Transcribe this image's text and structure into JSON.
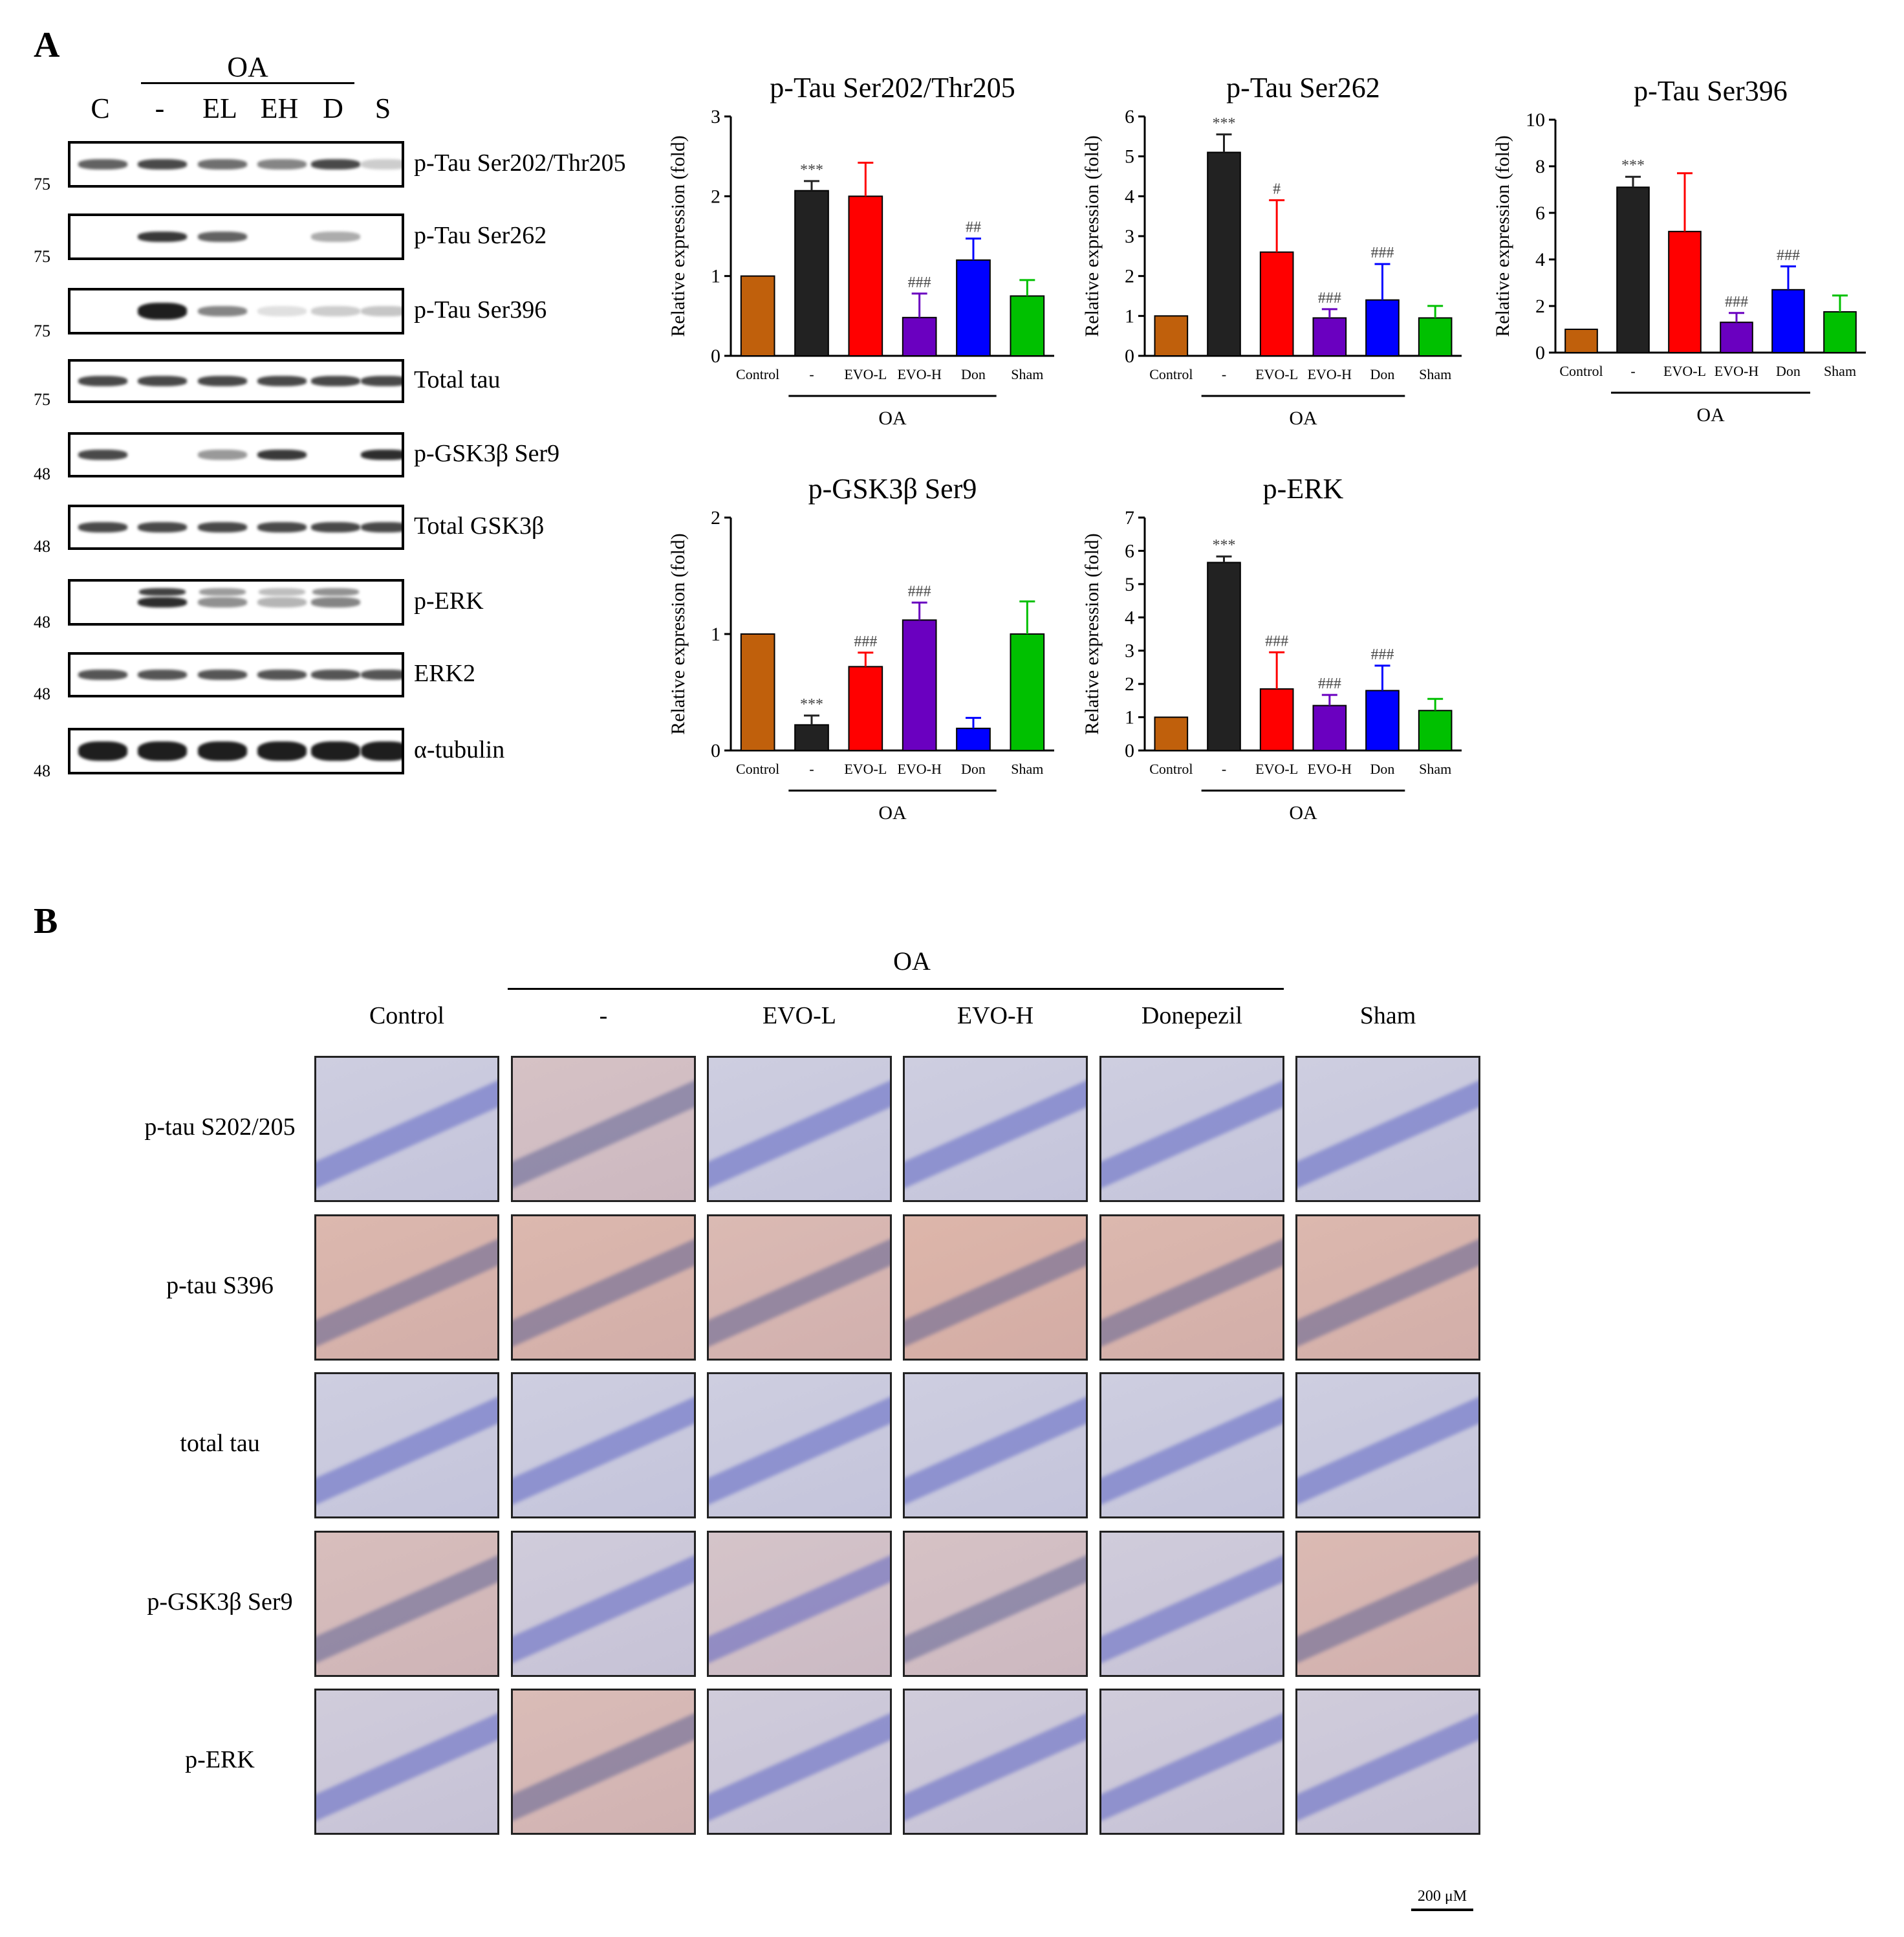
{
  "panels": {
    "a": "A",
    "b": "B"
  },
  "western_blot": {
    "treatment_label": "OA",
    "lanes": [
      "C",
      "-",
      "EL",
      "EH",
      "D",
      "S"
    ],
    "blots": [
      {
        "label": "p-Tau Ser202/Thr205",
        "mw": "75",
        "intensity": [
          0.75,
          0.85,
          0.7,
          0.6,
          0.85,
          0.2
        ]
      },
      {
        "label": "p-Tau Ser262",
        "mw": "75",
        "intensity": [
          0.0,
          0.9,
          0.75,
          0.0,
          0.4,
          0.0
        ]
      },
      {
        "label": "p-Tau Ser396",
        "mw": "75",
        "intensity": [
          0.0,
          1.0,
          0.6,
          0.05,
          0.2,
          0.25
        ]
      },
      {
        "label": "Total tau",
        "mw": "75",
        "intensity": [
          0.85,
          0.85,
          0.85,
          0.85,
          0.85,
          0.85
        ]
      },
      {
        "label": "p-GSK3β Ser9",
        "mw": "48",
        "intensity": [
          0.85,
          0.0,
          0.5,
          0.9,
          0.0,
          0.95
        ]
      },
      {
        "label": "Total GSK3β",
        "mw": "48",
        "intensity": [
          0.85,
          0.85,
          0.85,
          0.85,
          0.85,
          0.85
        ]
      },
      {
        "label": "p-ERK",
        "mw": "48",
        "intensity": [
          0.0,
          0.95,
          0.55,
          0.35,
          0.6,
          0.0
        ]
      },
      {
        "label": "ERK2",
        "mw": "48",
        "intensity": [
          0.8,
          0.8,
          0.8,
          0.8,
          0.8,
          0.8
        ]
      },
      {
        "label": "α-tubulin",
        "mw": "48",
        "intensity": [
          1.0,
          1.0,
          1.0,
          1.0,
          1.0,
          1.0
        ]
      }
    ]
  },
  "chart_data": [
    {
      "type": "bar",
      "title": "p-Tau Ser202/Thr205",
      "ylabel": "Relative expression (fold)",
      "group_label": "OA",
      "categories": [
        "Control",
        "-",
        "EVO-L",
        "EVO-H",
        "Don",
        "Sham"
      ],
      "values": [
        1.0,
        2.07,
        2.0,
        0.48,
        1.2,
        0.75
      ],
      "errors": [
        0,
        0.12,
        0.42,
        0.3,
        0.27,
        0.2
      ],
      "annotations": [
        "",
        "***",
        "",
        "###",
        "##",
        ""
      ],
      "ylim": [
        0,
        3
      ],
      "yticks": [
        0,
        1,
        2,
        3
      ]
    },
    {
      "type": "bar",
      "title": "p-Tau Ser262",
      "ylabel": "Relative expression (fold)",
      "group_label": "OA",
      "categories": [
        "Control",
        "-",
        "EVO-L",
        "EVO-H",
        "Don",
        "Sham"
      ],
      "values": [
        1.0,
        5.1,
        2.6,
        0.95,
        1.4,
        0.95
      ],
      "errors": [
        0,
        0.45,
        1.3,
        0.22,
        0.9,
        0.3
      ],
      "annotations": [
        "",
        "***",
        "#",
        "###",
        "###",
        ""
      ],
      "ylim": [
        0,
        6
      ],
      "yticks": [
        0,
        1,
        2,
        3,
        4,
        5,
        6
      ]
    },
    {
      "type": "bar",
      "title": "p-Tau Ser396",
      "ylabel": "Relative expression (fold)",
      "group_label": "OA",
      "categories": [
        "Control",
        "-",
        "EVO-L",
        "EVO-H",
        "Don",
        "Sham"
      ],
      "values": [
        1.0,
        7.1,
        5.2,
        1.3,
        2.7,
        1.75
      ],
      "errors": [
        0,
        0.45,
        2.5,
        0.4,
        1.0,
        0.7
      ],
      "annotations": [
        "",
        "***",
        "",
        "###",
        "###",
        ""
      ],
      "ylim": [
        0,
        10
      ],
      "yticks": [
        0,
        2,
        4,
        6,
        8,
        10
      ]
    },
    {
      "type": "bar",
      "title": "p-GSK3β Ser9",
      "ylabel": "Relative expression (fold)",
      "group_label": "OA",
      "categories": [
        "Control",
        "-",
        "EVO-L",
        "EVO-H",
        "Don",
        "Sham"
      ],
      "values": [
        1.0,
        0.22,
        0.72,
        1.12,
        0.19,
        1.0
      ],
      "errors": [
        0,
        0.08,
        0.12,
        0.15,
        0.09,
        0.28
      ],
      "annotations": [
        "",
        "***",
        "###",
        "###",
        "",
        ""
      ],
      "ylim": [
        0,
        2
      ],
      "yticks": [
        0,
        1,
        2
      ]
    },
    {
      "type": "bar",
      "title": "p-ERK",
      "ylabel": "Relative expression (fold)",
      "group_label": "OA",
      "categories": [
        "Control",
        "-",
        "EVO-L",
        "EVO-H",
        "Don",
        "Sham"
      ],
      "values": [
        1.0,
        5.65,
        1.85,
        1.35,
        1.8,
        1.2
      ],
      "errors": [
        0,
        0.18,
        1.1,
        0.32,
        0.75,
        0.35
      ],
      "annotations": [
        "",
        "***",
        "###",
        "###",
        "###",
        ""
      ],
      "ylim": [
        0,
        7
      ],
      "yticks": [
        0,
        1,
        2,
        3,
        4,
        5,
        6,
        7
      ]
    }
  ],
  "bar_colors": [
    "#c0600c",
    "#222222",
    "#ff0000",
    "#6a00c0",
    "#0000ff",
    "#00c000"
  ],
  "ihc": {
    "treatment_label": "OA",
    "columns": [
      "Control",
      "-",
      "EVO-L",
      "EVO-H",
      "Donepezil",
      "Sham"
    ],
    "rows": [
      "p-tau S202/205",
      "p-tau S396",
      "total tau",
      "p-GSK3β Ser9",
      "p-ERK"
    ],
    "scale_bar": "200 μM",
    "stain_level": [
      [
        0.05,
        0.35,
        0.05,
        0.05,
        0.05,
        0.05
      ],
      [
        0.6,
        0.6,
        0.55,
        0.65,
        0.6,
        0.6
      ],
      [
        0.05,
        0.05,
        0.05,
        0.05,
        0.05,
        0.05
      ],
      [
        0.45,
        0.1,
        0.3,
        0.35,
        0.1,
        0.55
      ],
      [
        0.1,
        0.5,
        0.1,
        0.1,
        0.1,
        0.1
      ]
    ]
  }
}
